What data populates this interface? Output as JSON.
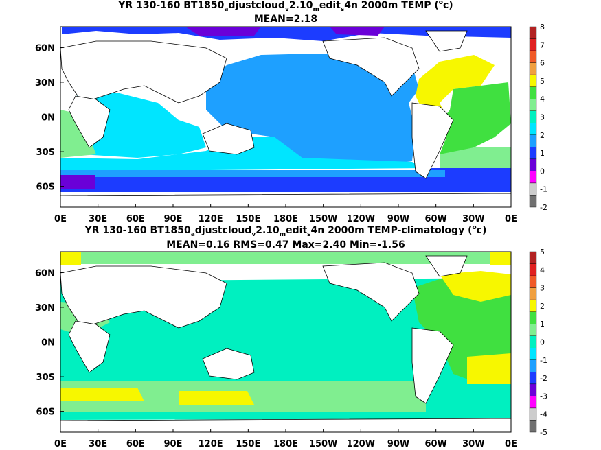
{
  "chart_data": [
    {
      "type": "heatmap",
      "title_parts": [
        "YR 130-160 BT1850",
        "a",
        "djustcloud",
        "v",
        "2.10",
        "m",
        "edit",
        "s",
        "4n 2000m TEMP (",
        "o",
        "c)"
      ],
      "subtitle": "MEAN=2.18",
      "x_ticks": [
        "0E",
        "30E",
        "60E",
        "90E",
        "120E",
        "150E",
        "180E",
        "150W",
        "120W",
        "90W",
        "60W",
        "30W",
        "0E"
      ],
      "y_ticks": [
        "60N",
        "30N",
        "0N",
        "30S",
        "60S"
      ],
      "colorbar_labels": [
        "8",
        "7",
        "6",
        "5",
        "4",
        "3",
        "2",
        "1",
        "0",
        "-1",
        "-2"
      ],
      "colorbar_colors": [
        "#b22222",
        "#e02020",
        "#f05a28",
        "#f0a040",
        "#f7f700",
        "#40e040",
        "#80ee90",
        "#00f0c0",
        "#00e5ff",
        "#1ea0ff",
        "#1c3cff",
        "#6a00d8",
        "#ff00ff",
        "#cccccc",
        "#707070"
      ]
    },
    {
      "type": "heatmap",
      "title_parts": [
        "YR 130-160 BT1850",
        "a",
        "djustcloud",
        "v",
        "2.10",
        "m",
        "edit",
        "s",
        "4n 2000m TEMP-climatology (",
        "o",
        "c)"
      ],
      "subtitle": "MEAN=0.16   RMS=0.47   Max=2.40   Min=-1.56",
      "x_ticks": [
        "0E",
        "30E",
        "60E",
        "90E",
        "120E",
        "150E",
        "180E",
        "150W",
        "120W",
        "90W",
        "60W",
        "30W",
        "0E"
      ],
      "y_ticks": [
        "60N",
        "30N",
        "0N",
        "30S",
        "60S"
      ],
      "colorbar_labels": [
        "5",
        "4",
        "3",
        "2",
        "1",
        "0",
        "-1",
        "-2",
        "-3",
        "-4",
        "-5"
      ],
      "colorbar_colors": [
        "#b22222",
        "#e02020",
        "#f05a28",
        "#f0a040",
        "#f7f700",
        "#40e040",
        "#80ee90",
        "#00f0c0",
        "#00e5ff",
        "#1ea0ff",
        "#1c3cff",
        "#6a00d8",
        "#ff00ff",
        "#cccccc",
        "#707070"
      ]
    }
  ]
}
